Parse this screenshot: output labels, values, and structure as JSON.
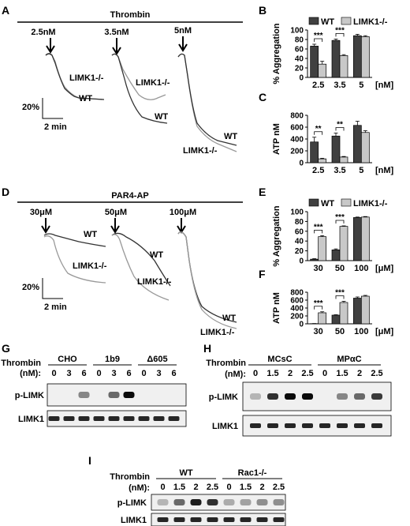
{
  "panels": {
    "A": {
      "letter": "A",
      "bar_label": "Thrombin",
      "doses": [
        "2.5nM",
        "3.5nM",
        "5nM"
      ],
      "trace_labels": {
        "wt": "WT",
        "ko": "LIMK1-/-"
      },
      "scale_y": "20%",
      "scale_x": "2 min"
    },
    "B": {
      "letter": "B"
    },
    "C": {
      "letter": "C"
    },
    "D": {
      "letter": "D",
      "bar_label": "PAR4-AP",
      "doses": [
        "30μM",
        "50μM",
        "100μM"
      ],
      "trace_labels": {
        "wt": "WT",
        "ko": "LIMK1-/-"
      },
      "scale_y": "20%",
      "scale_x": "2 min"
    },
    "E": {
      "letter": "E"
    },
    "F": {
      "letter": "F"
    },
    "G": {
      "letter": "G",
      "row_header": [
        "Thrombin",
        "(nM):"
      ],
      "groups": [
        "CHO",
        "1b9",
        "Δ605"
      ],
      "lanes": [
        "0",
        "3",
        "6",
        "0",
        "3",
        "6",
        "0",
        "3",
        "6"
      ],
      "rows": [
        "p-LIMK",
        "LIMK1"
      ],
      "p_limk_intensity": [
        0,
        0,
        0.35,
        0,
        0.5,
        1,
        0,
        0,
        0
      ]
    },
    "H": {
      "letter": "H",
      "row_header": [
        "Thrombin",
        "(nM):"
      ],
      "groups": [
        "MCsC",
        "MPαC"
      ],
      "lanes": [
        "0",
        "1.5",
        "2",
        "2.5",
        "0",
        "1.5",
        "2",
        "2.5"
      ],
      "rows": [
        "p-LIMK",
        "LIMK1"
      ],
      "p_limk_intensity": [
        0.1,
        0.8,
        1,
        1,
        0,
        0.35,
        0.5,
        0.75
      ]
    },
    "I": {
      "letter": "I",
      "row_header": [
        "Thrombin",
        "(nM):"
      ],
      "groups": [
        "WT",
        "Rac1-/-"
      ],
      "lanes": [
        "0",
        "1.5",
        "2",
        "2.5",
        "0",
        "1.5",
        "2",
        "2.5"
      ],
      "rows": [
        "p-LIMK",
        "LIMK1"
      ],
      "p_limk_intensity": [
        0.1,
        0.5,
        0.9,
        0.8,
        0.15,
        0.2,
        0.3,
        0.3
      ]
    }
  },
  "colors": {
    "wt": "#404040",
    "ko": "#c8c8c8",
    "trace_wt": "#333333",
    "trace_ko": "#888888"
  },
  "chart_data": [
    {
      "panel": "B",
      "type": "bar",
      "categories": [
        "2.5",
        "3.5",
        "5"
      ],
      "unit": "[nM]",
      "ylabel": "% Aggregation",
      "ylim": [
        0,
        100
      ],
      "yticks": [
        0,
        20,
        40,
        60,
        80,
        100
      ],
      "legend": [
        "WT",
        "LIMK1-/-"
      ],
      "series": [
        {
          "name": "WT",
          "values": [
            66,
            78,
            88
          ],
          "errors": [
            4,
            3,
            3
          ]
        },
        {
          "name": "LIMK1-/-",
          "values": [
            28,
            46,
            86
          ],
          "errors": [
            6,
            2,
            2
          ]
        }
      ],
      "significance": [
        {
          "index": 0,
          "label": "***"
        },
        {
          "index": 1,
          "label": "***"
        }
      ]
    },
    {
      "panel": "C",
      "type": "bar",
      "categories": [
        "2.5",
        "3.5",
        "5"
      ],
      "unit": "[nM]",
      "ylabel": "ATP nM",
      "ylim": [
        0,
        800
      ],
      "yticks": [
        0,
        200,
        400,
        600,
        800
      ],
      "series": [
        {
          "name": "WT",
          "values": [
            350,
            450,
            630
          ],
          "errors": [
            80,
            50,
            70
          ]
        },
        {
          "name": "LIMK1-/-",
          "values": [
            65,
            95,
            510
          ],
          "errors": [
            10,
            10,
            30
          ]
        }
      ],
      "significance": [
        {
          "index": 0,
          "label": "**"
        },
        {
          "index": 1,
          "label": "**"
        }
      ]
    },
    {
      "panel": "E",
      "type": "bar",
      "categories": [
        "30",
        "50",
        "100"
      ],
      "unit": "[μM]",
      "ylabel": "% Aggregation",
      "ylim": [
        0,
        100
      ],
      "yticks": [
        0,
        20,
        40,
        60,
        80,
        100
      ],
      "legend": [
        "WT",
        "LIMK1-/-"
      ],
      "series": [
        {
          "name": "WT",
          "values": [
            3,
            22,
            88
          ],
          "errors": [
            1,
            2,
            1
          ]
        },
        {
          "name": "LIMK1-/-",
          "values": [
            49,
            70,
            89
          ],
          "errors": [
            2,
            1,
            1
          ]
        }
      ],
      "significance": [
        {
          "index": 0,
          "label": "***"
        },
        {
          "index": 1,
          "label": "***"
        }
      ]
    },
    {
      "panel": "F",
      "type": "bar",
      "categories": [
        "30",
        "50",
        "100"
      ],
      "unit": "[μM]",
      "ylabel": "ATP nM",
      "ylim": [
        0,
        800
      ],
      "yticks": [
        0,
        200,
        400,
        600,
        800
      ],
      "series": [
        {
          "name": "WT",
          "values": [
            5,
            220,
            650
          ],
          "errors": [
            2,
            10,
            30
          ]
        },
        {
          "name": "LIMK1-/-",
          "values": [
            280,
            540,
            700
          ],
          "errors": [
            25,
            30,
            20
          ]
        }
      ],
      "significance": [
        {
          "index": 0,
          "label": "***"
        },
        {
          "index": 1,
          "label": "***"
        }
      ]
    }
  ]
}
